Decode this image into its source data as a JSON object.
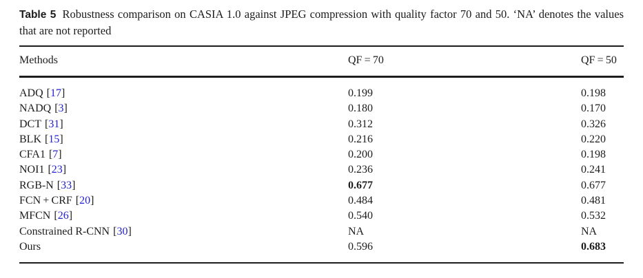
{
  "caption": {
    "label": "Table 5",
    "text": "Robustness comparison on CASIA 1.0 against JPEG compression with quality factor 70 and 50. ‘NA’ denotes the values that are not reported"
  },
  "table": {
    "headers": [
      "Methods",
      "QF = 70",
      "QF = 50"
    ],
    "citation_brackets": [
      "[",
      "]"
    ],
    "rows": [
      {
        "method": "ADQ",
        "ref": "17",
        "qf70": "0.199",
        "qf50": "0.198"
      },
      {
        "method": "NADQ",
        "ref": "3",
        "qf70": "0.180",
        "qf50": "0.170"
      },
      {
        "method": "DCT",
        "ref": "31",
        "qf70": "0.312",
        "qf50": "0.326"
      },
      {
        "method": "BLK",
        "ref": "15",
        "qf70": "0.216",
        "qf50": "0.220"
      },
      {
        "method": "CFA1",
        "ref": "7",
        "qf70": "0.200",
        "qf50": "0.198"
      },
      {
        "method": "NOI1",
        "ref": "23",
        "qf70": "0.236",
        "qf50": "0.241"
      },
      {
        "method": "RGB-N",
        "ref": "33",
        "qf70": "0.677",
        "qf70_bold": true,
        "qf50": "0.677"
      },
      {
        "method": "FCN + CRF",
        "ref": "20",
        "qf70": "0.484",
        "qf50": "0.481"
      },
      {
        "method": "MFCN",
        "ref": "26",
        "qf70": "0.540",
        "qf50": "0.532"
      },
      {
        "method": "Constrained R-CNN",
        "ref": "30",
        "qf70": "NA",
        "qf50": "NA"
      },
      {
        "method": "Ours",
        "ref": null,
        "qf70": "0.596",
        "qf50": "0.683",
        "qf50_bold": true
      }
    ]
  },
  "colors": {
    "background": "#ffffff",
    "text": "#1c1c1c",
    "rule": "#1c1c1c",
    "citation": "#2222cc"
  }
}
